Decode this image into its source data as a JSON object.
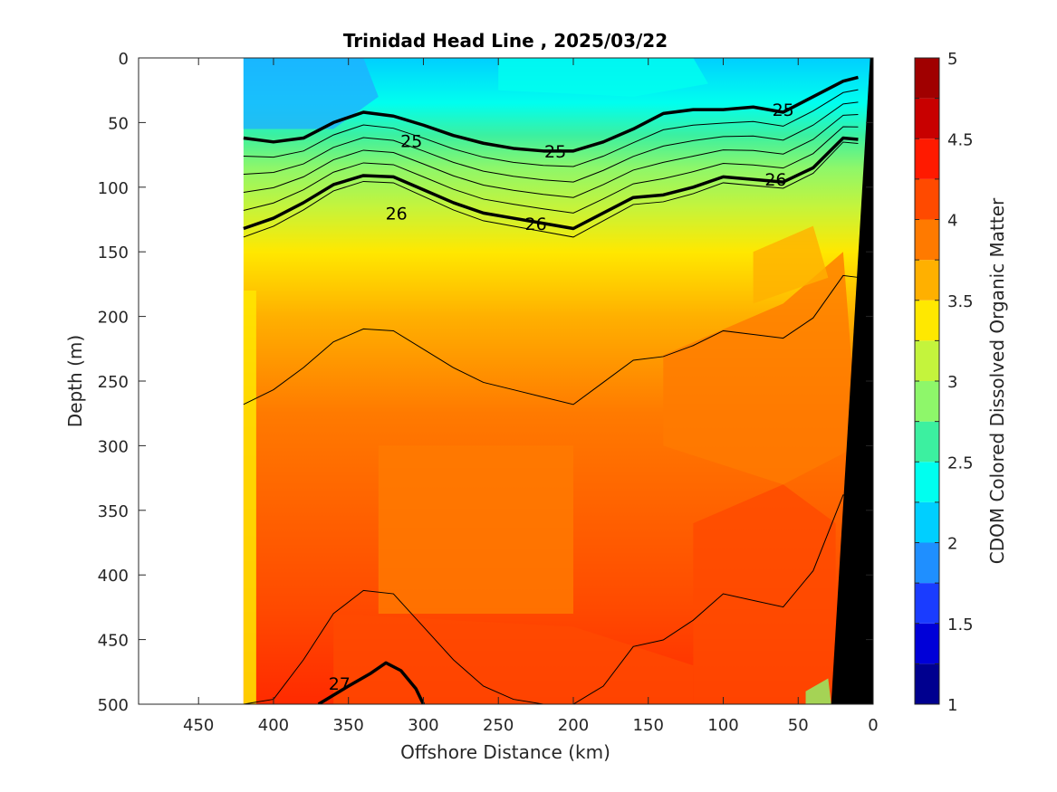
{
  "chart_data": {
    "type": "heatmap",
    "title": "Trinidad Head Line , 2025/03/22",
    "xlabel": "Offshore Distance (km)",
    "ylabel": "Depth (m)",
    "colorbar_label": "CDOM Colored Dissolved Organic Matter",
    "xlim": [
      490,
      0
    ],
    "ylim": [
      500,
      0
    ],
    "x_ticks": [
      450,
      400,
      350,
      300,
      250,
      200,
      150,
      100,
      50,
      0
    ],
    "y_ticks": [
      0,
      50,
      100,
      150,
      200,
      250,
      300,
      350,
      400,
      450,
      500
    ],
    "colorbar_range": [
      1,
      5
    ],
    "colorbar_ticks": [
      5,
      4.5,
      4,
      3.5,
      3,
      2.5,
      2,
      1.5,
      1
    ],
    "colormap": [
      "#00008f",
      "#0000d8",
      "#1a3cff",
      "#1f8fff",
      "#00cfff",
      "#00ffef",
      "#3cf0a0",
      "#8ef76a",
      "#c4f43c",
      "#ffe800",
      "#ffb000",
      "#ff7a00",
      "#ff4a00",
      "#ff1a00",
      "#c80000",
      "#a00000"
    ],
    "data_extent_x": [
      420,
      0
    ],
    "cdom_profile": {
      "depth": [
        0,
        30,
        50,
        75,
        100,
        130,
        160,
        200,
        250,
        300,
        350,
        400,
        450,
        500
      ],
      "value": [
        2.4,
        2.6,
        2.8,
        3.0,
        3.2,
        3.5,
        3.7,
        3.9,
        4.0,
        4.1,
        4.2,
        4.3,
        4.3,
        4.4
      ]
    },
    "density_contours": [
      {
        "level": "25",
        "labeled": true,
        "x": [
          420,
          400,
          380,
          360,
          340,
          320,
          300,
          280,
          260,
          240,
          220,
          200,
          180,
          160,
          140,
          120,
          100,
          80,
          60,
          40,
          20,
          10
        ],
        "y": [
          62,
          65,
          62,
          50,
          42,
          45,
          52,
          60,
          66,
          70,
          72,
          72,
          65,
          55,
          43,
          40,
          40,
          38,
          42,
          30,
          18,
          15
        ]
      },
      {
        "level": "26",
        "labeled": true,
        "x": [
          420,
          400,
          380,
          360,
          340,
          320,
          300,
          280,
          260,
          240,
          220,
          200,
          180,
          160,
          140,
          120,
          100,
          80,
          60,
          40,
          20,
          10
        ],
        "y": [
          132,
          124,
          112,
          98,
          91,
          92,
          102,
          112,
          120,
          124,
          128,
          132,
          120,
          108,
          106,
          100,
          92,
          94,
          96,
          85,
          62,
          63
        ]
      },
      {
        "level": "27",
        "labeled": true,
        "x": [
          370,
          350,
          335,
          325,
          315,
          305,
          300
        ],
        "y": [
          500,
          486,
          476,
          468,
          474,
          488,
          500
        ]
      }
    ]
  }
}
